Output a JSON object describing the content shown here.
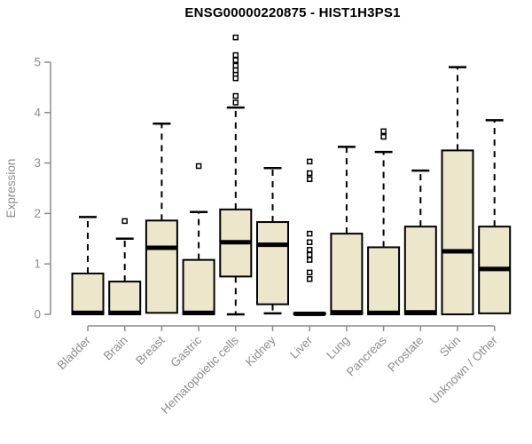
{
  "page": {
    "background": "#ffffff"
  },
  "chart_data": {
    "type": "boxplot",
    "title": "ENSG00000220875 - HIST1H3PS1",
    "ylabel": "Expression",
    "xlabel": "",
    "ylim": [
      0,
      5.5
    ],
    "yticks": [
      0,
      1,
      2,
      3,
      4,
      5
    ],
    "grid": false,
    "legend": "none",
    "colors": {
      "box_fill": "#ECE6CB",
      "box_stroke": "#000000",
      "median": "#000000",
      "whisker": "#000000",
      "axis": "#8c8c8c",
      "tick_label": "#8c8c8c",
      "title": "#000000",
      "outlier_fill": "#ffffff"
    },
    "categories": [
      "Bladder",
      "Brain",
      "Breast",
      "Gastric",
      "Hematopoietic cells",
      "Kidney",
      "Liver",
      "Lung",
      "Pancreas",
      "Prostate",
      "Skin",
      "Unknown / Other"
    ],
    "boxes": [
      {
        "category": "Bladder",
        "whislo": 0,
        "q1": 0,
        "med": 0.03,
        "q3": 0.81,
        "whishi": 1.93,
        "outliers": []
      },
      {
        "category": "Brain",
        "whislo": 0,
        "q1": 0,
        "med": 0.03,
        "q3": 0.65,
        "whishi": 1.5,
        "outliers": [
          1.85
        ]
      },
      {
        "category": "Breast",
        "whislo": 0.02,
        "q1": 0.03,
        "med": 1.32,
        "q3": 1.86,
        "whishi": 3.78,
        "outliers": []
      },
      {
        "category": "Gastric",
        "whislo": 0,
        "q1": 0,
        "med": 0.03,
        "q3": 1.08,
        "whishi": 2.03,
        "outliers": [
          2.94
        ]
      },
      {
        "category": "Hematopoietic cells",
        "whislo": 0,
        "q1": 0.75,
        "med": 1.43,
        "q3": 2.08,
        "whishi": 4.1,
        "outliers": [
          5.49,
          5.14,
          5.04,
          4.93,
          4.84,
          4.75,
          4.68,
          4.33,
          4.2
        ]
      },
      {
        "category": "Kidney",
        "whislo": 0.02,
        "q1": 0.2,
        "med": 1.38,
        "q3": 1.83,
        "whishi": 2.9,
        "outliers": []
      },
      {
        "category": "Liver",
        "whislo": 0,
        "q1": 0,
        "med": 0.01,
        "q3": 0.03,
        "whishi": 0.04,
        "outliers": [
          3.03,
          2.8,
          2.68,
          1.6,
          1.43,
          1.28,
          1.18,
          1.08,
          0.83,
          0.7
        ]
      },
      {
        "category": "Lung",
        "whislo": 0,
        "q1": 0,
        "med": 0.04,
        "q3": 1.6,
        "whishi": 3.32,
        "outliers": []
      },
      {
        "category": "Pancreas",
        "whislo": 0,
        "q1": 0,
        "med": 0.03,
        "q3": 1.33,
        "whishi": 3.22,
        "outliers": [
          3.63,
          3.52
        ]
      },
      {
        "category": "Prostate",
        "whislo": 0,
        "q1": 0,
        "med": 0.04,
        "q3": 1.74,
        "whishi": 2.85,
        "outliers": []
      },
      {
        "category": "Skin",
        "whislo": 0,
        "q1": 0,
        "med": 1.25,
        "q3": 3.25,
        "whishi": 4.9,
        "outliers": []
      },
      {
        "category": "Unknown / Other",
        "whislo": 0,
        "q1": 0.02,
        "med": 0.9,
        "q3": 1.74,
        "whishi": 3.85,
        "outliers": []
      }
    ]
  }
}
